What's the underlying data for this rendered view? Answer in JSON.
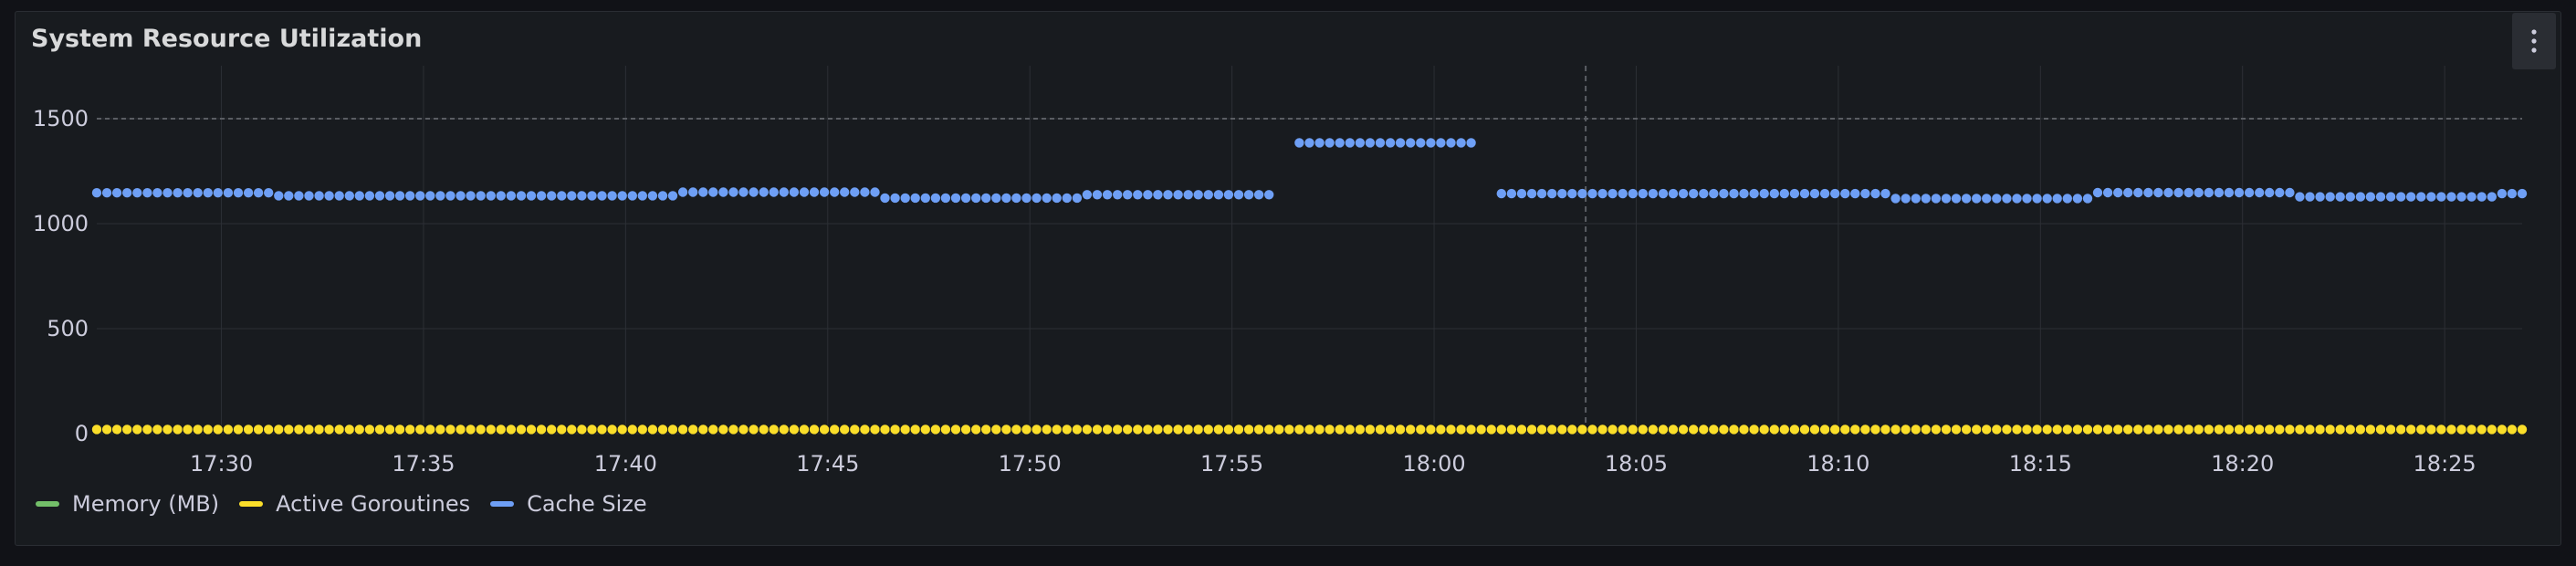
{
  "panel": {
    "title": "System Resource Utilization",
    "menu_icon": "vertical-ellipsis-icon"
  },
  "colors": {
    "background": "#181b1f",
    "grid": "#2c2f35",
    "text": "#ccccdc",
    "memory": "#73bf69",
    "goroutines": "#fade2a",
    "cache": "#6e9ff5",
    "threshold": "#5a5d63"
  },
  "chart_data": {
    "type": "scatter",
    "title": "System Resource Utilization",
    "xlabel": "",
    "ylabel": "",
    "ylim": [
      0,
      1500
    ],
    "yticks": [
      0,
      500,
      1000,
      1500
    ],
    "xlim": [
      "17:26:55",
      "18:26:55"
    ],
    "xticks": [
      "17:30",
      "17:35",
      "17:40",
      "17:45",
      "17:50",
      "17:55",
      "18:00",
      "18:05",
      "18:10",
      "18:15",
      "18:20",
      "18:25"
    ],
    "threshold_line": 1500,
    "crosshair_time": "18:03:45",
    "sample_interval_seconds": 15,
    "grid": true,
    "legend_position": "bottom-left",
    "series": [
      {
        "name": "Memory (MB)",
        "color": "#73bf69",
        "segments": [
          {
            "start": "17:26:55",
            "end": "18:26:55",
            "value": 20
          }
        ]
      },
      {
        "name": "Active Goroutines",
        "color": "#fade2a",
        "segments": [
          {
            "start": "17:26:55",
            "end": "18:26:55",
            "value": 20
          }
        ]
      },
      {
        "name": "Cache Size",
        "color": "#6e9ff5",
        "segments": [
          {
            "start": "17:26:55",
            "end": "17:31:25",
            "value": 1147
          },
          {
            "start": "17:31:25",
            "end": "17:41:25",
            "value": 1133
          },
          {
            "start": "17:41:25",
            "end": "17:46:25",
            "value": 1150
          },
          {
            "start": "17:46:25",
            "end": "17:51:25",
            "value": 1122
          },
          {
            "start": "17:51:25",
            "end": "17:56:25",
            "value": 1138
          },
          {
            "start": "17:56:25",
            "end": "18:01:25",
            "value": 1385
          },
          {
            "start": "18:01:25",
            "end": "18:11:25",
            "value": 1143
          },
          {
            "start": "18:11:25",
            "end": "18:16:25",
            "value": 1120
          },
          {
            "start": "18:16:25",
            "end": "18:21:25",
            "value": 1148
          },
          {
            "start": "18:21:25",
            "end": "18:26:25",
            "value": 1128
          },
          {
            "start": "18:26:25",
            "end": "18:26:55",
            "value": 1143
          }
        ],
        "gaps": [
          [
            "17:56:10",
            "17:56:25"
          ],
          [
            "18:01:10",
            "18:01:25"
          ]
        ]
      }
    ]
  }
}
